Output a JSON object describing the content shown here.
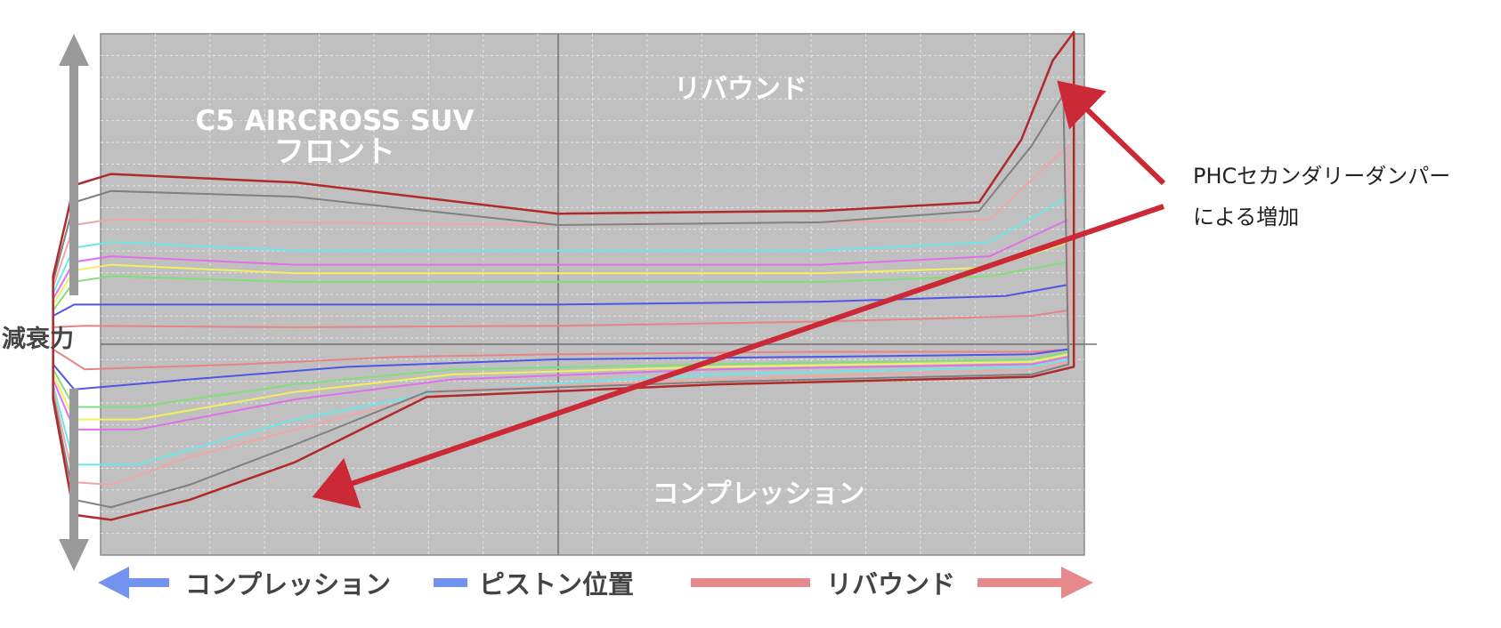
{
  "labels": {
    "vertical_axis": "減衰力",
    "plot_title_line1": "C5 AIRCROSS SUV",
    "plot_title_line2": "フロント",
    "region_top": "リバウンド",
    "region_bottom": "コンプレッション",
    "bottom_left": "コンプレッション",
    "bottom_center": "ピストン位置",
    "bottom_right": "リバウンド",
    "annotation_line1": "PHCセカンダリーダンパー",
    "annotation_line2": "による増加"
  },
  "colors": {
    "plot_background": "#c0c0c0",
    "gridline": "#e4e4e4",
    "axis_arrow": "#9a9a9a",
    "compression_arrow": "#7393ee",
    "rebound_arrow": "#e48a8d",
    "annotation_arrow": "#cc2936",
    "region_text": "#ffffff",
    "axis_text": "#444444"
  },
  "chart_data": {
    "type": "line",
    "description_axes": "x = piston position (compression ← → rebound), y = damping force; loops are force-vs-position cycles at increasing speeds, no numeric scale shown",
    "xlim": [
      -1,
      1
    ],
    "ylim": [
      -1,
      1
    ],
    "grid": true,
    "series": [
      {
        "color": "#e58585",
        "top": [
          [
            -0.96,
            0.06
          ],
          [
            -0.9,
            0.065
          ],
          [
            -0.5,
            0.06
          ],
          [
            0,
            0.065
          ],
          [
            0.5,
            0.08
          ],
          [
            0.9,
            0.1
          ],
          [
            0.97,
            0.12
          ]
        ],
        "bottom": [
          [
            -0.96,
            -0.02
          ],
          [
            -0.9,
            -0.1
          ],
          [
            -0.6,
            -0.08
          ],
          [
            -0.3,
            -0.05
          ],
          [
            0,
            -0.04
          ],
          [
            0.5,
            -0.03
          ],
          [
            0.9,
            -0.03
          ],
          [
            0.97,
            -0.02
          ]
        ]
      },
      {
        "color": "#4f55e6",
        "top": [
          [
            -0.96,
            0.1
          ],
          [
            -0.92,
            0.14
          ],
          [
            -0.5,
            0.14
          ],
          [
            0,
            0.14
          ],
          [
            0.5,
            0.15
          ],
          [
            0.85,
            0.17
          ],
          [
            0.97,
            0.21
          ]
        ],
        "bottom": [
          [
            -0.96,
            -0.08
          ],
          [
            -0.92,
            -0.18
          ],
          [
            -0.7,
            -0.14
          ],
          [
            -0.4,
            -0.09
          ],
          [
            0,
            -0.06
          ],
          [
            0.5,
            -0.05
          ],
          [
            0.9,
            -0.04
          ],
          [
            0.97,
            -0.02
          ]
        ]
      },
      {
        "color": "#7fe07a",
        "top": [
          [
            -0.96,
            0.12
          ],
          [
            -0.92,
            0.22
          ],
          [
            -0.85,
            0.24
          ],
          [
            -0.5,
            0.22
          ],
          [
            0,
            0.22
          ],
          [
            0.5,
            0.22
          ],
          [
            0.82,
            0.24
          ],
          [
            0.97,
            0.29
          ]
        ],
        "bottom": [
          [
            -0.96,
            -0.1
          ],
          [
            -0.92,
            -0.25
          ],
          [
            -0.8,
            -0.25
          ],
          [
            -0.5,
            -0.16
          ],
          [
            -0.2,
            -0.1
          ],
          [
            0.3,
            -0.08
          ],
          [
            0.9,
            -0.06
          ],
          [
            0.97,
            -0.03
          ]
        ]
      },
      {
        "color": "#f0f060",
        "top": [
          [
            -0.96,
            0.14
          ],
          [
            -0.92,
            0.26
          ],
          [
            -0.85,
            0.28
          ],
          [
            -0.5,
            0.25
          ],
          [
            0,
            0.25
          ],
          [
            0.5,
            0.25
          ],
          [
            0.82,
            0.27
          ],
          [
            0.97,
            0.36
          ]
        ],
        "bottom": [
          [
            -0.96,
            -0.12
          ],
          [
            -0.92,
            -0.3
          ],
          [
            -0.8,
            -0.3
          ],
          [
            -0.5,
            -0.19
          ],
          [
            -0.2,
            -0.12
          ],
          [
            0.3,
            -0.09
          ],
          [
            0.9,
            -0.07
          ],
          [
            0.97,
            -0.04
          ]
        ]
      },
      {
        "color": "#e070e8",
        "top": [
          [
            -0.96,
            0.16
          ],
          [
            -0.92,
            0.29
          ],
          [
            -0.85,
            0.31
          ],
          [
            -0.5,
            0.28
          ],
          [
            0,
            0.28
          ],
          [
            0.5,
            0.28
          ],
          [
            0.82,
            0.31
          ],
          [
            0.97,
            0.44
          ]
        ],
        "bottom": [
          [
            -0.96,
            -0.14
          ],
          [
            -0.92,
            -0.34
          ],
          [
            -0.8,
            -0.34
          ],
          [
            -0.5,
            -0.22
          ],
          [
            -0.2,
            -0.14
          ],
          [
            0.3,
            -0.1
          ],
          [
            0.9,
            -0.08
          ],
          [
            0.97,
            -0.05
          ]
        ]
      },
      {
        "color": "#6ae8e8",
        "top": [
          [
            -0.96,
            0.18
          ],
          [
            -0.92,
            0.34
          ],
          [
            -0.85,
            0.36
          ],
          [
            -0.5,
            0.33
          ],
          [
            0,
            0.33
          ],
          [
            0.5,
            0.33
          ],
          [
            0.82,
            0.36
          ],
          [
            0.97,
            0.52
          ]
        ],
        "bottom": [
          [
            -0.96,
            -0.16
          ],
          [
            -0.92,
            -0.48
          ],
          [
            -0.8,
            -0.48
          ],
          [
            -0.5,
            -0.3
          ],
          [
            -0.2,
            -0.18
          ],
          [
            0.3,
            -0.12
          ],
          [
            0.9,
            -0.09
          ],
          [
            0.97,
            -0.06
          ]
        ]
      },
      {
        "color": "#f0a6a6",
        "top": [
          [
            -0.96,
            0.2
          ],
          [
            -0.92,
            0.42
          ],
          [
            -0.85,
            0.44
          ],
          [
            -0.5,
            0.43
          ],
          [
            0,
            0.42
          ],
          [
            0.5,
            0.43
          ],
          [
            0.82,
            0.44
          ],
          [
            0.9,
            0.58
          ],
          [
            0.97,
            0.7
          ]
        ],
        "bottom": [
          [
            -0.96,
            -0.18
          ],
          [
            -0.92,
            -0.55
          ],
          [
            -0.85,
            -0.56
          ],
          [
            -0.7,
            -0.45
          ],
          [
            -0.5,
            -0.34
          ],
          [
            -0.2,
            -0.18
          ],
          [
            0.3,
            -0.14
          ],
          [
            0.9,
            -0.1
          ],
          [
            0.97,
            -0.07
          ]
        ]
      },
      {
        "color": "#808080",
        "top": [
          [
            -0.96,
            0.22
          ],
          [
            -0.92,
            0.5
          ],
          [
            -0.85,
            0.54
          ],
          [
            -0.5,
            0.52
          ],
          [
            0,
            0.42
          ],
          [
            0.5,
            0.43
          ],
          [
            0.8,
            0.47
          ],
          [
            0.9,
            0.7
          ],
          [
            0.96,
            0.88
          ]
        ],
        "bottom": [
          [
            -0.96,
            -0.2
          ],
          [
            -0.92,
            -0.62
          ],
          [
            -0.85,
            -0.65
          ],
          [
            -0.7,
            -0.56
          ],
          [
            -0.5,
            -0.4
          ],
          [
            -0.25,
            -0.19
          ],
          [
            0.3,
            -0.15
          ],
          [
            0.9,
            -0.12
          ],
          [
            0.97,
            -0.08
          ]
        ]
      },
      {
        "color": "#b02a2a",
        "top": [
          [
            -0.96,
            0.24
          ],
          [
            -0.92,
            0.56
          ],
          [
            -0.85,
            0.6
          ],
          [
            -0.5,
            0.57
          ],
          [
            0,
            0.46
          ],
          [
            0.5,
            0.47
          ],
          [
            0.8,
            0.5
          ],
          [
            0.88,
            0.72
          ],
          [
            0.94,
            1.0
          ],
          [
            0.98,
            1.1
          ]
        ],
        "bottom": [
          [
            -0.96,
            -0.22
          ],
          [
            -0.92,
            -0.68
          ],
          [
            -0.85,
            -0.7
          ],
          [
            -0.7,
            -0.62
          ],
          [
            -0.5,
            -0.47
          ],
          [
            -0.25,
            -0.21
          ],
          [
            0.3,
            -0.16
          ],
          [
            0.9,
            -0.13
          ],
          [
            0.98,
            -0.09
          ]
        ]
      }
    ]
  }
}
